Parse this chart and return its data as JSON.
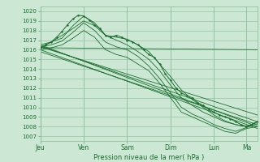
{
  "title": "",
  "xlabel": "Pression niveau de la mer( hPa )",
  "bg_color": "#cce8d4",
  "grid_color": "#88bb99",
  "line_color": "#1a6e2e",
  "ylim": [
    1006.5,
    1020.5
  ],
  "yticks": [
    1007,
    1008,
    1009,
    1010,
    1011,
    1012,
    1013,
    1014,
    1015,
    1016,
    1017,
    1018,
    1019,
    1020
  ],
  "day_labels": [
    "Jeu",
    "Ven",
    "Sam",
    "Dim",
    "Lun",
    "Ma"
  ],
  "day_positions": [
    0,
    48,
    96,
    144,
    192,
    228
  ],
  "total_hours": 240,
  "straight_lines": [
    [
      0,
      1016.2,
      240,
      1016.0
    ],
    [
      0,
      1016.3,
      240,
      1009.2
    ],
    [
      0,
      1016.4,
      240,
      1008.5
    ],
    [
      0,
      1016.5,
      240,
      1008.0
    ],
    [
      0,
      1016.0,
      240,
      1007.8
    ],
    [
      0,
      1015.8,
      240,
      1008.2
    ]
  ],
  "curved_lines": [
    [
      0,
      1016.2,
      12,
      1016.8,
      24,
      1017.2,
      36,
      1018.5,
      48,
      1019.5,
      60,
      1018.8,
      72,
      1017.5,
      84,
      1017.3,
      96,
      1017.1,
      108,
      1016.5,
      120,
      1015.8,
      132,
      1014.5,
      144,
      1013.2,
      156,
      1011.8,
      168,
      1010.8,
      180,
      1010.0,
      192,
      1009.2,
      204,
      1008.6,
      216,
      1008.2,
      228,
      1008.0,
      240,
      1008.5
    ],
    [
      0,
      1016.3,
      12,
      1016.5,
      24,
      1016.9,
      36,
      1017.8,
      48,
      1018.8,
      60,
      1018.0,
      72,
      1016.8,
      84,
      1016.3,
      96,
      1016.0,
      108,
      1015.3,
      120,
      1014.3,
      132,
      1013.0,
      144,
      1011.5,
      156,
      1010.0,
      168,
      1009.3,
      180,
      1008.8,
      192,
      1008.2,
      204,
      1007.8,
      216,
      1007.5,
      228,
      1007.9,
      240,
      1008.3
    ],
    [
      0,
      1016.0,
      12,
      1016.2,
      24,
      1016.5,
      36,
      1017.2,
      48,
      1018.0,
      60,
      1017.3,
      72,
      1016.0,
      84,
      1015.5,
      96,
      1015.2,
      108,
      1014.5,
      120,
      1013.8,
      132,
      1012.5,
      144,
      1011.0,
      156,
      1009.5,
      168,
      1009.0,
      180,
      1008.5,
      192,
      1008.0,
      204,
      1007.5,
      216,
      1007.3,
      228,
      1007.8,
      240,
      1008.0
    ],
    [
      0,
      1016.5,
      12,
      1016.8,
      24,
      1017.5,
      36,
      1018.2,
      48,
      1019.0,
      60,
      1018.5,
      72,
      1017.5,
      84,
      1017.0,
      96,
      1016.5,
      108,
      1015.8,
      120,
      1015.0,
      132,
      1013.8,
      144,
      1012.3,
      156,
      1011.0,
      168,
      1010.2,
      180,
      1009.5,
      192,
      1009.0,
      204,
      1008.5,
      216,
      1008.2,
      228,
      1008.0,
      240,
      1008.5
    ]
  ],
  "detail_line": [
    0,
    1016.2,
    6,
    1016.5,
    12,
    1016.8,
    18,
    1017.3,
    24,
    1017.9,
    30,
    1018.6,
    36,
    1019.2,
    42,
    1019.6,
    48,
    1019.5,
    54,
    1019.1,
    60,
    1018.6,
    66,
    1018.2,
    72,
    1017.5,
    78,
    1017.3,
    84,
    1017.5,
    90,
    1017.3,
    96,
    1017.0,
    102,
    1016.8,
    108,
    1016.5,
    114,
    1016.0,
    120,
    1015.5,
    126,
    1015.2,
    132,
    1014.5,
    138,
    1013.5,
    144,
    1012.8,
    150,
    1012.0,
    156,
    1011.5,
    162,
    1011.2,
    168,
    1011.0,
    174,
    1010.5,
    180,
    1010.2,
    186,
    1009.8,
    192,
    1009.5,
    198,
    1009.2,
    204,
    1009.0,
    210,
    1008.8,
    216,
    1008.5,
    222,
    1008.2,
    228,
    1008.0,
    234,
    1008.2,
    240,
    1008.5
  ]
}
